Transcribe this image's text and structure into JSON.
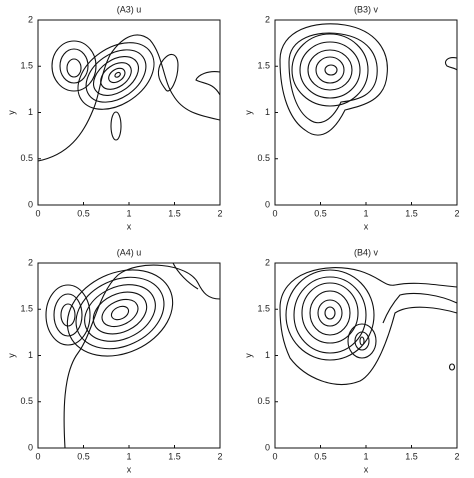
{
  "chart_data": [
    {
      "type": "contour",
      "title": "(A3)  u",
      "xlabel": "x",
      "ylabel": "y",
      "xlim": [
        0,
        2
      ],
      "ylim": [
        0,
        2
      ],
      "xticks": [
        0,
        0.5,
        1,
        1.5,
        2
      ],
      "yticks": [
        0,
        0.5,
        1,
        1.5,
        2
      ]
    },
    {
      "type": "contour",
      "title": "(B3)  v",
      "xlabel": "x",
      "ylabel": "y",
      "xlim": [
        0,
        2
      ],
      "ylim": [
        0,
        2
      ],
      "xticks": [
        0,
        0.5,
        1,
        1.5,
        2
      ],
      "yticks": [
        0,
        0.5,
        1,
        1.5,
        2
      ]
    },
    {
      "type": "contour",
      "title": "(A4)  u",
      "xlabel": "x",
      "ylabel": "y",
      "xlim": [
        0,
        2
      ],
      "ylim": [
        0,
        2
      ],
      "xticks": [
        0,
        0.5,
        1,
        1.5,
        2
      ],
      "yticks": [
        0,
        0.5,
        1,
        1.5,
        2
      ]
    },
    {
      "type": "contour",
      "title": "(B4)  v",
      "xlabel": "x",
      "ylabel": "y",
      "xlim": [
        0,
        2
      ],
      "ylim": [
        0,
        2
      ],
      "xticks": [
        0,
        0.5,
        1,
        1.5,
        2
      ],
      "yticks": [
        0,
        0.5,
        1,
        1.5,
        2
      ]
    }
  ]
}
